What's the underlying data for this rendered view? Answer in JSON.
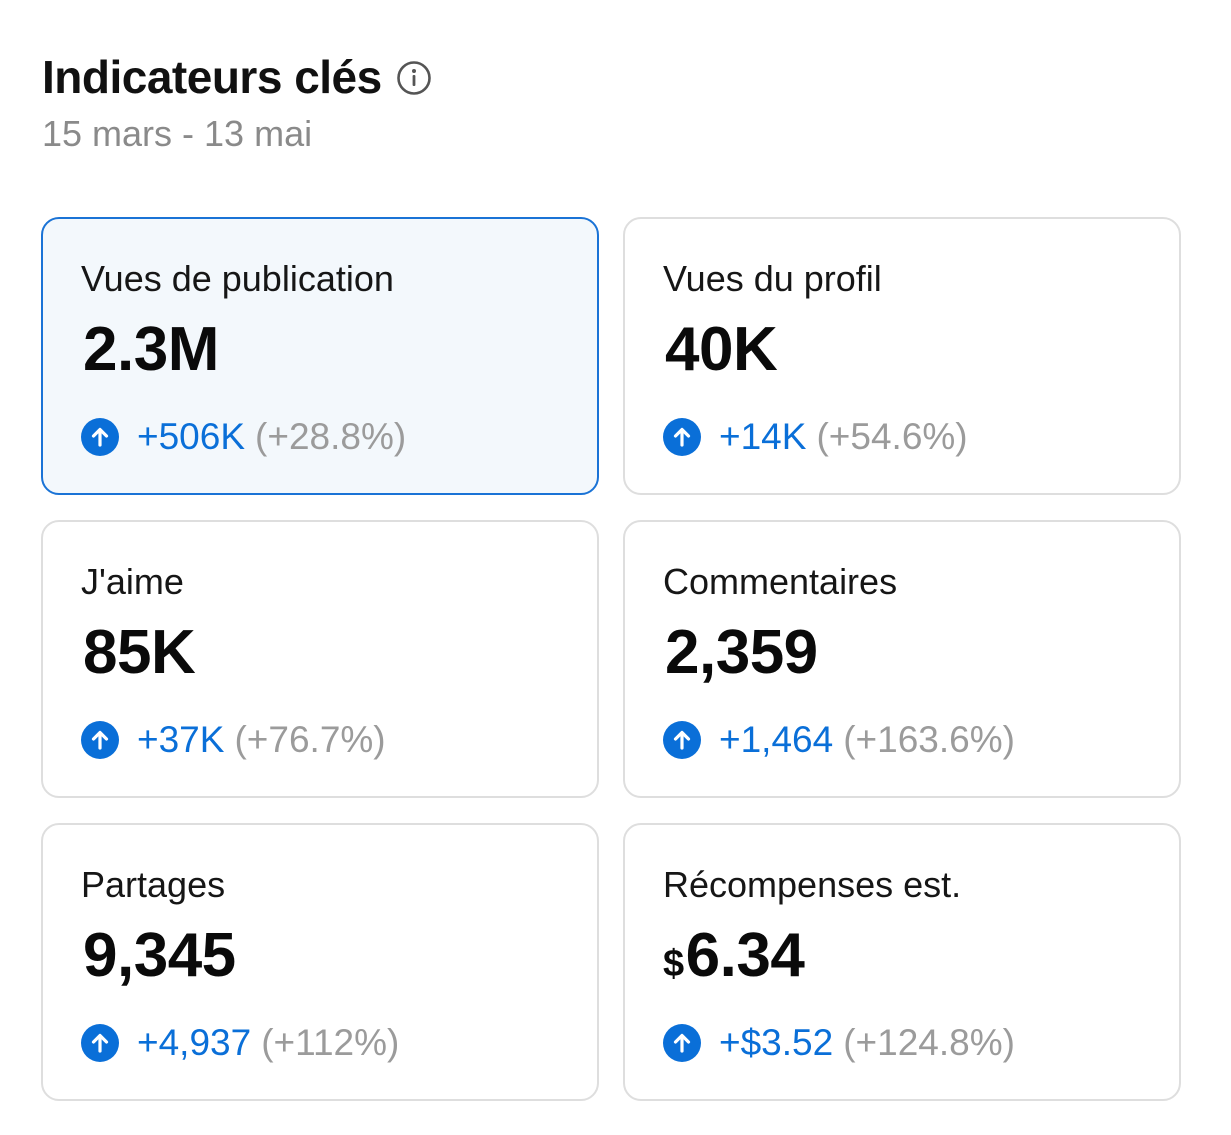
{
  "header": {
    "title": "Indicateurs clés",
    "info_icon": "info-circle-icon",
    "date_range": "15 mars - 13 mai"
  },
  "colors": {
    "accent": "#0a6fd8",
    "selected_bg": "#f3f8fc",
    "selected_border": "#1a73d6",
    "muted": "#9b9b9b"
  },
  "metrics": [
    {
      "label": "Vues de publication",
      "currency": "",
      "value": "2.3M",
      "delta": "+506K",
      "delta_pct": "(+28.8%)",
      "icon": "arrow-up-circle-icon",
      "selected": true
    },
    {
      "label": "Vues du profil",
      "currency": "",
      "value": "40K",
      "delta": "+14K",
      "delta_pct": "(+54.6%)",
      "icon": "arrow-up-circle-icon",
      "selected": false
    },
    {
      "label": "J'aime",
      "currency": "",
      "value": "85K",
      "delta": "+37K",
      "delta_pct": "(+76.7%)",
      "icon": "arrow-up-circle-icon",
      "selected": false
    },
    {
      "label": "Commentaires",
      "currency": "",
      "value": "2,359",
      "delta": "+1,464",
      "delta_pct": "(+163.6%)",
      "icon": "arrow-up-circle-icon",
      "selected": false
    },
    {
      "label": "Partages",
      "currency": "",
      "value": "9,345",
      "delta": "+4,937",
      "delta_pct": "(+112%)",
      "icon": "arrow-up-circle-icon",
      "selected": false
    },
    {
      "label": "Récompenses est.",
      "currency": "$",
      "value": "6.34",
      "delta": "+$3.52",
      "delta_pct": "(+124.8%)",
      "icon": "arrow-up-circle-icon",
      "selected": false
    }
  ]
}
